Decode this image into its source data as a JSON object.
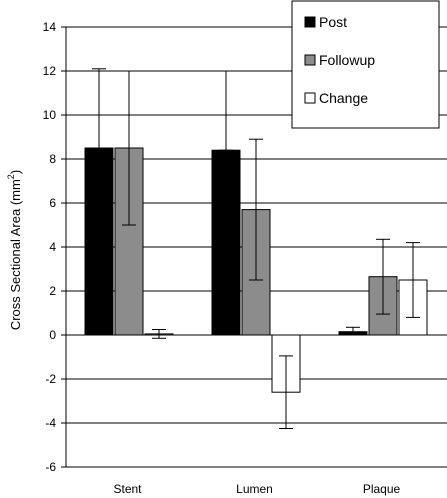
{
  "chart_data": {
    "type": "bar",
    "categories": [
      "Stent",
      "Lumen",
      "Plaque"
    ],
    "ylabel": "Cross Sectional Area (mm",
    "ylabel_sup": "2",
    "ylabel_close": ")",
    "ylim": [
      -6,
      14
    ],
    "yticks": [
      14,
      12,
      10,
      8,
      6,
      4,
      2,
      0,
      -2,
      -4,
      -6
    ],
    "grid": "horizontal",
    "legend_position": "top-right",
    "series": [
      {
        "name": "Post",
        "color": "#000000",
        "values": [
          8.5,
          8.4,
          0.15
        ],
        "err_low": [
          4.9,
          8.4,
          0.0
        ],
        "err_high": [
          12.1,
          12.0,
          0.35
        ]
      },
      {
        "name": "Followup",
        "color": "#8c8c8c",
        "values": [
          8.5,
          5.7,
          2.65
        ],
        "err_low": [
          5.0,
          2.5,
          0.95
        ],
        "err_high": [
          12.0,
          8.9,
          4.35
        ]
      },
      {
        "name": "Change",
        "color": "#ffffff",
        "values": [
          0.05,
          -2.6,
          2.5
        ],
        "err_low": [
          -0.15,
          -4.25,
          0.8
        ],
        "err_high": [
          0.25,
          -0.95,
          4.2
        ]
      }
    ]
  }
}
